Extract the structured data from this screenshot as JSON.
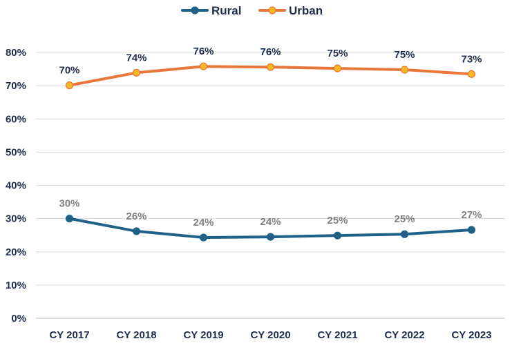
{
  "chart_data": {
    "type": "line",
    "title": "",
    "xlabel": "",
    "ylabel": "",
    "categories": [
      "CY 2017",
      "CY 2018",
      "CY 2019",
      "CY 2020",
      "CY 2021",
      "CY 2022",
      "CY 2023"
    ],
    "ylim": [
      0,
      80
    ],
    "yticks": [
      "0%",
      "10%",
      "20%",
      "30%",
      "40%",
      "50%",
      "60%",
      "70%",
      "80%"
    ],
    "grid": true,
    "legend_position": "top-center",
    "series": [
      {
        "name": "Rural",
        "values": [
          30,
          26.2,
          24.3,
          24.5,
          24.9,
          25.3,
          26.6
        ],
        "labels": [
          "30%",
          "26%",
          "24%",
          "24%",
          "25%",
          "25%",
          "27%"
        ],
        "line_color": "#1f6287",
        "marker_color": "#1f6287",
        "label_color": "#7f7f7f"
      },
      {
        "name": "Urban",
        "values": [
          70.1,
          73.9,
          75.8,
          75.6,
          75.2,
          74.8,
          73.5
        ],
        "labels": [
          "70%",
          "74%",
          "76%",
          "76%",
          "75%",
          "75%",
          "73%"
        ],
        "line_color": "#e8773b",
        "marker_color": "#f7b824",
        "label_color": "#1f2d4d"
      }
    ]
  }
}
